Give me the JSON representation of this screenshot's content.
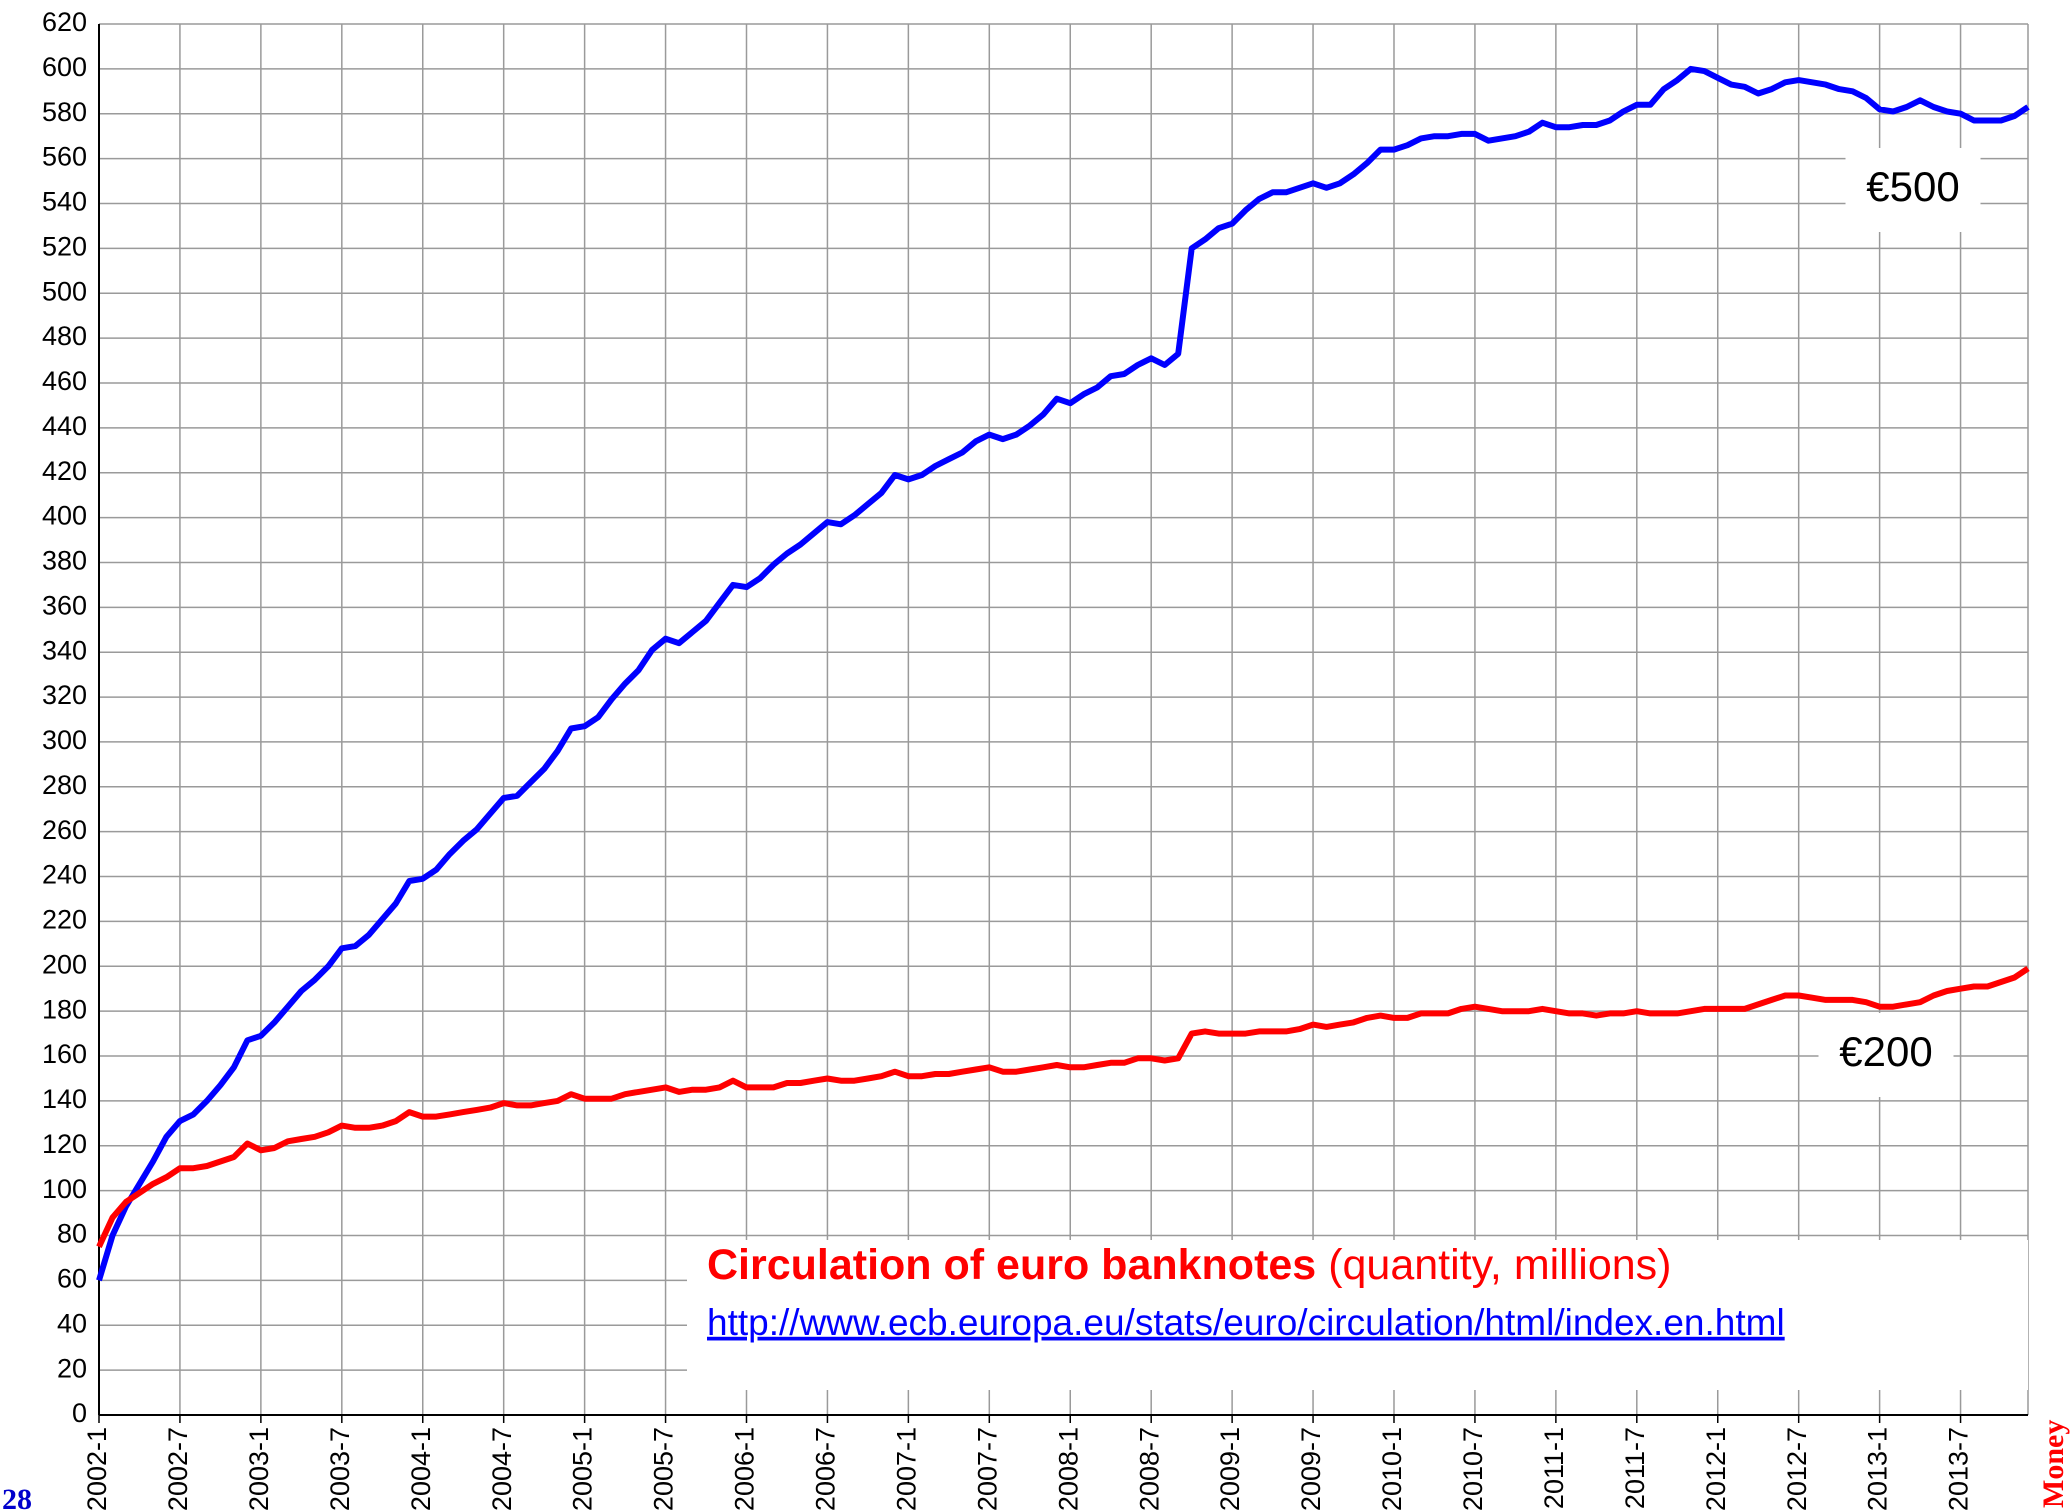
{
  "chart_data": {
    "type": "line",
    "title": "Circulation of euro banknotes",
    "subtitle": "(quantity, millions)",
    "source": "http://www.ecb.europa.eu/stats/euro/circulation/html/index.en.html",
    "page_number": "28",
    "section": "Money",
    "categories": [
      "2002-1",
      null,
      null,
      null,
      null,
      null,
      "2002-7",
      null,
      null,
      null,
      null,
      null,
      "2003-1",
      null,
      null,
      null,
      null,
      null,
      "2003-7",
      null,
      null,
      null,
      null,
      null,
      "2004-1",
      null,
      null,
      null,
      null,
      null,
      "2004-7",
      null,
      null,
      null,
      null,
      null,
      "2005-1",
      null,
      null,
      null,
      null,
      null,
      "2005-7",
      null,
      null,
      null,
      null,
      null,
      "2006-1",
      null,
      null,
      null,
      null,
      null,
      "2006-7",
      null,
      null,
      null,
      null,
      null,
      "2007-1",
      null,
      null,
      null,
      null,
      null,
      "2007-7",
      null,
      null,
      null,
      null,
      null,
      "2008-1",
      null,
      null,
      null,
      null,
      null,
      "2008-7",
      null,
      null,
      null,
      null,
      null,
      "2009-1",
      null,
      null,
      null,
      null,
      null,
      "2009-7",
      null,
      null,
      null,
      null,
      null,
      "2010-1",
      null,
      null,
      null,
      null,
      null,
      "2010-7",
      null,
      null,
      null,
      null,
      null,
      "2011-1",
      null,
      null,
      null,
      null,
      null,
      "2011-7",
      null,
      null,
      null,
      null,
      null,
      "2012-1",
      null,
      null,
      null,
      null,
      null,
      "2012-7",
      null,
      null,
      null,
      null,
      null,
      "2013-1",
      null,
      null,
      null,
      null,
      null,
      "2013-7",
      null,
      null,
      null,
      null,
      null
    ],
    "series": [
      {
        "name": "€500",
        "color": "#0000ff",
        "values": [
          60,
          80,
          93,
          103,
          113,
          124,
          131,
          134,
          140,
          147,
          155,
          167,
          169,
          175,
          182,
          189,
          194,
          200,
          208,
          209,
          214,
          221,
          228,
          238,
          239,
          243,
          250,
          256,
          261,
          268,
          275,
          276,
          282,
          288,
          296,
          306,
          307,
          311,
          319,
          326,
          332,
          341,
          346,
          344,
          349,
          354,
          362,
          370,
          369,
          373,
          379,
          384,
          388,
          393,
          398,
          397,
          401,
          406,
          411,
          419,
          417,
          419,
          423,
          426,
          429,
          434,
          437,
          435,
          437,
          441,
          446,
          453,
          451,
          455,
          458,
          463,
          464,
          468,
          471,
          468,
          473,
          520,
          524,
          529,
          531,
          537,
          542,
          545,
          545,
          547,
          549,
          547,
          549,
          553,
          558,
          564,
          564,
          566,
          569,
          570,
          570,
          571,
          571,
          568,
          569,
          570,
          572,
          576,
          574,
          574,
          575,
          575,
          577,
          581,
          584,
          584,
          591,
          595,
          600,
          599,
          596,
          593,
          592,
          589,
          591,
          594,
          595,
          594,
          593,
          591,
          590,
          587,
          582,
          581,
          583,
          586,
          583,
          581,
          580,
          577,
          577,
          577,
          579,
          583
        ]
      },
      {
        "name": "€200",
        "color": "#ff0000",
        "values": [
          75,
          88,
          95,
          99,
          103,
          106,
          110,
          110,
          111,
          113,
          115,
          121,
          118,
          119,
          122,
          123,
          124,
          126,
          129,
          128,
          128,
          129,
          131,
          135,
          133,
          133,
          134,
          135,
          136,
          137,
          139,
          138,
          138,
          139,
          140,
          143,
          141,
          141,
          141,
          143,
          144,
          145,
          146,
          144,
          145,
          145,
          146,
          149,
          146,
          146,
          146,
          148,
          148,
          149,
          150,
          149,
          149,
          150,
          151,
          153,
          151,
          151,
          152,
          152,
          153,
          154,
          155,
          153,
          153,
          154,
          155,
          156,
          155,
          155,
          156,
          157,
          157,
          159,
          159,
          158,
          159,
          170,
          171,
          170,
          170,
          170,
          171,
          171,
          171,
          172,
          174,
          173,
          174,
          175,
          177,
          178,
          177,
          177,
          179,
          179,
          179,
          181,
          182,
          181,
          180,
          180,
          180,
          181,
          180,
          179,
          179,
          178,
          179,
          179,
          180,
          179,
          179,
          179,
          180,
          181,
          181,
          181,
          181,
          183,
          185,
          187,
          187,
          186,
          185,
          185,
          185,
          184,
          182,
          182,
          183,
          184,
          187,
          189,
          190,
          191,
          191,
          193,
          195,
          199
        ]
      }
    ],
    "ylim": [
      0,
      620
    ],
    "yticks": [
      0,
      20,
      40,
      60,
      80,
      100,
      120,
      140,
      160,
      180,
      200,
      220,
      240,
      260,
      280,
      300,
      320,
      340,
      360,
      380,
      400,
      420,
      440,
      460,
      480,
      500,
      520,
      540,
      560,
      580,
      600,
      620
    ],
    "grid": true
  }
}
